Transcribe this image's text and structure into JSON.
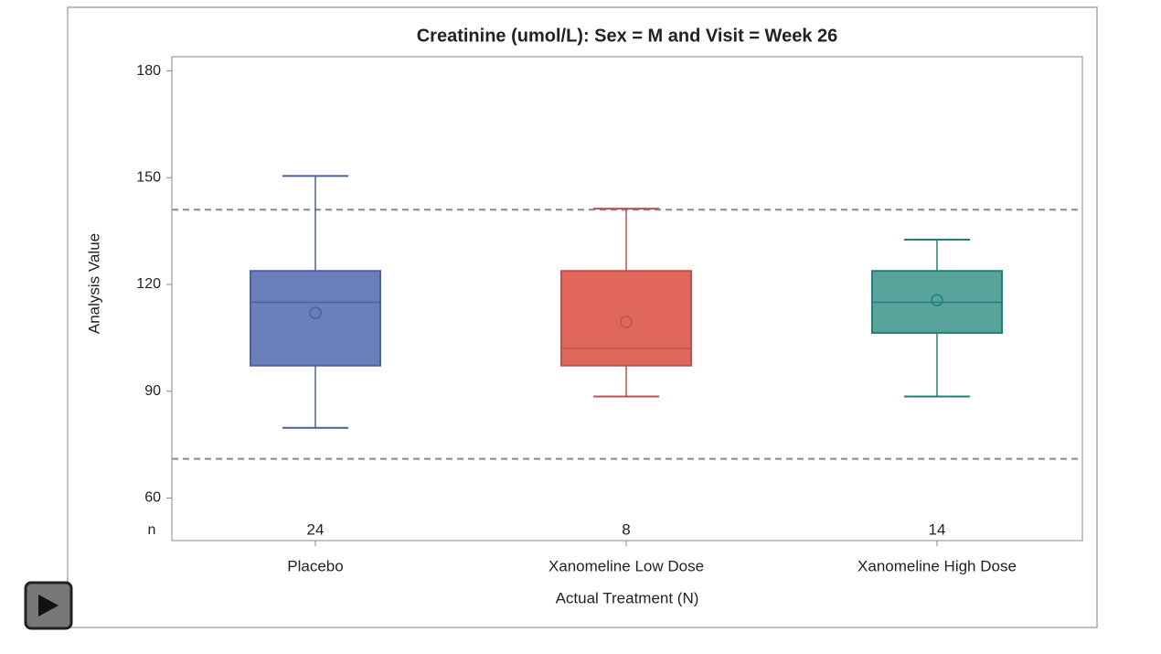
{
  "chart_data": {
    "type": "box",
    "title": "Creatinine (umol/L): Sex = M and Visit = Week 26",
    "x_label": "Actual Treatment (N)",
    "y_label": "Analysis Value",
    "categories": [
      "Placebo",
      "Xanomeline Low Dose",
      "Xanomeline High Dose"
    ],
    "whisker_low": [
      79.7,
      88.5,
      88.5
    ],
    "q1": [
      97.2,
      97.2,
      106.4
    ],
    "median": [
      115,
      102,
      115
    ],
    "q3": [
      123.8,
      123.8,
      123.8
    ],
    "whisker_high": [
      150.5,
      141.3,
      132.6
    ],
    "mean": [
      112,
      109.5,
      115.6
    ],
    "colors": [
      "#6a7fba",
      "#e0675a",
      "#5aa39c"
    ],
    "edge_colors": [
      "#4b5fa5",
      "#c0504d",
      "#1f7f79"
    ],
    "n_label": "n",
    "n": [
      24,
      8,
      14
    ],
    "reference_lines": [
      141,
      71
    ],
    "ylim": [
      56,
      184
    ],
    "yticks": [
      60,
      90,
      120,
      150,
      180
    ]
  }
}
